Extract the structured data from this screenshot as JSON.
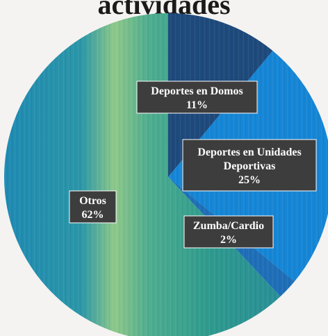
{
  "chart_data": {
    "type": "pie",
    "title": "actividades",
    "slices": [
      {
        "label": "Deportes en Domos",
        "value": 11,
        "value_label": "11%",
        "color": "#1e4a7c"
      },
      {
        "label": "Deportes en Unidades Deportivas",
        "value": 25,
        "value_label": "25%",
        "color": "#1686d6"
      },
      {
        "label": "Zumba/Cardio",
        "value": 2,
        "value_label": "2%",
        "color": "#1f6fb8"
      },
      {
        "label": "Otros",
        "value": 62,
        "value_label": "62%",
        "color": "#2f9c95"
      }
    ],
    "legend": "none",
    "data_labels": "dark boxes"
  }
}
